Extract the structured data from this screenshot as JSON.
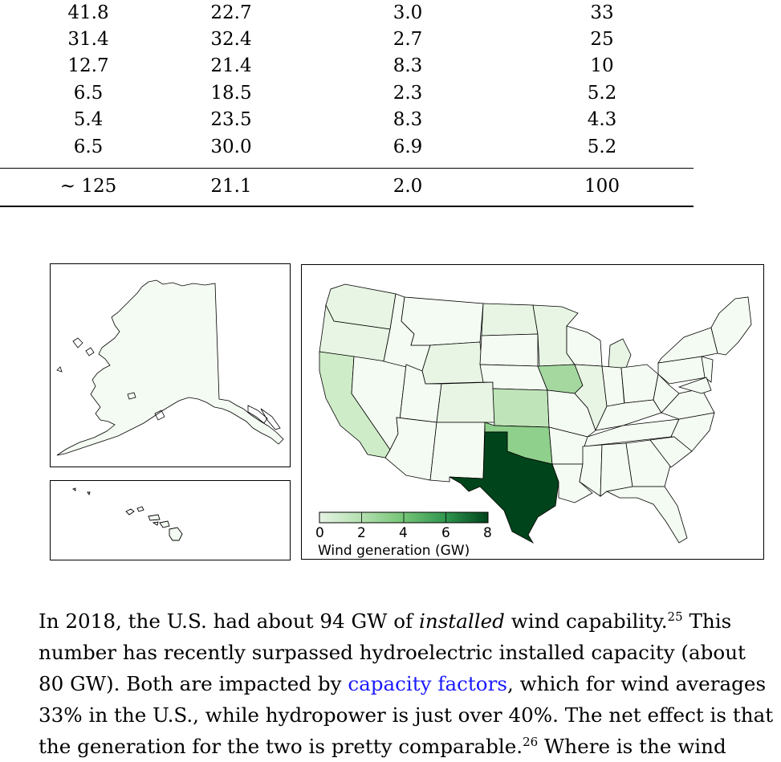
{
  "table": {
    "rows": [
      [
        "41.8",
        "22.7",
        "3.0",
        "33"
      ],
      [
        "31.4",
        "32.4",
        "2.7",
        "25"
      ],
      [
        "12.7",
        "21.4",
        "8.3",
        "10"
      ],
      [
        "6.5",
        "18.5",
        "2.3",
        "5.2"
      ],
      [
        "5.4",
        "23.5",
        "8.3",
        "4.3"
      ],
      [
        "6.5",
        "30.0",
        "6.9",
        "5.2"
      ]
    ],
    "total": [
      "~ 125",
      "21.1",
      "2.0",
      "100"
    ]
  },
  "figure": {
    "colorbar": {
      "ticks": [
        "0",
        "2",
        "4",
        "6",
        "8"
      ],
      "label": "Wind generation (GW)",
      "colors": [
        "#e6f4e3",
        "#b4dfaf",
        "#74c476",
        "#2f954e",
        "#00441b"
      ]
    },
    "colors": {
      "texas": "#00441b",
      "oklahoma": "#8fd08c",
      "iowa": "#a4d89f",
      "kansas": "#bfe4b9",
      "california": "#cfecc8",
      "light": "#e8f5e4",
      "lightest": "#f4fbf2"
    }
  },
  "paragraph": {
    "line1_a": "In 2018, the U.S. had about 94 GW of ",
    "line1_em": "installed",
    "line1_b": " wind capability.",
    "line1_sup": "25",
    "line1_c": " This",
    "line2": "number has recently surpassed hydroelectric installed capacity (about",
    "line3_a": "80 GW). Both are impacted by ",
    "line3_link": "capacity factors",
    "line3_b": ", which for wind averages",
    "line4": "33% in the U.S., while hydropower is just over 40%. The net effect is that",
    "line5_a": "the generation for the two is pretty comparable.",
    "line5_sup": "26",
    "line5_b": " Where is the wind"
  }
}
